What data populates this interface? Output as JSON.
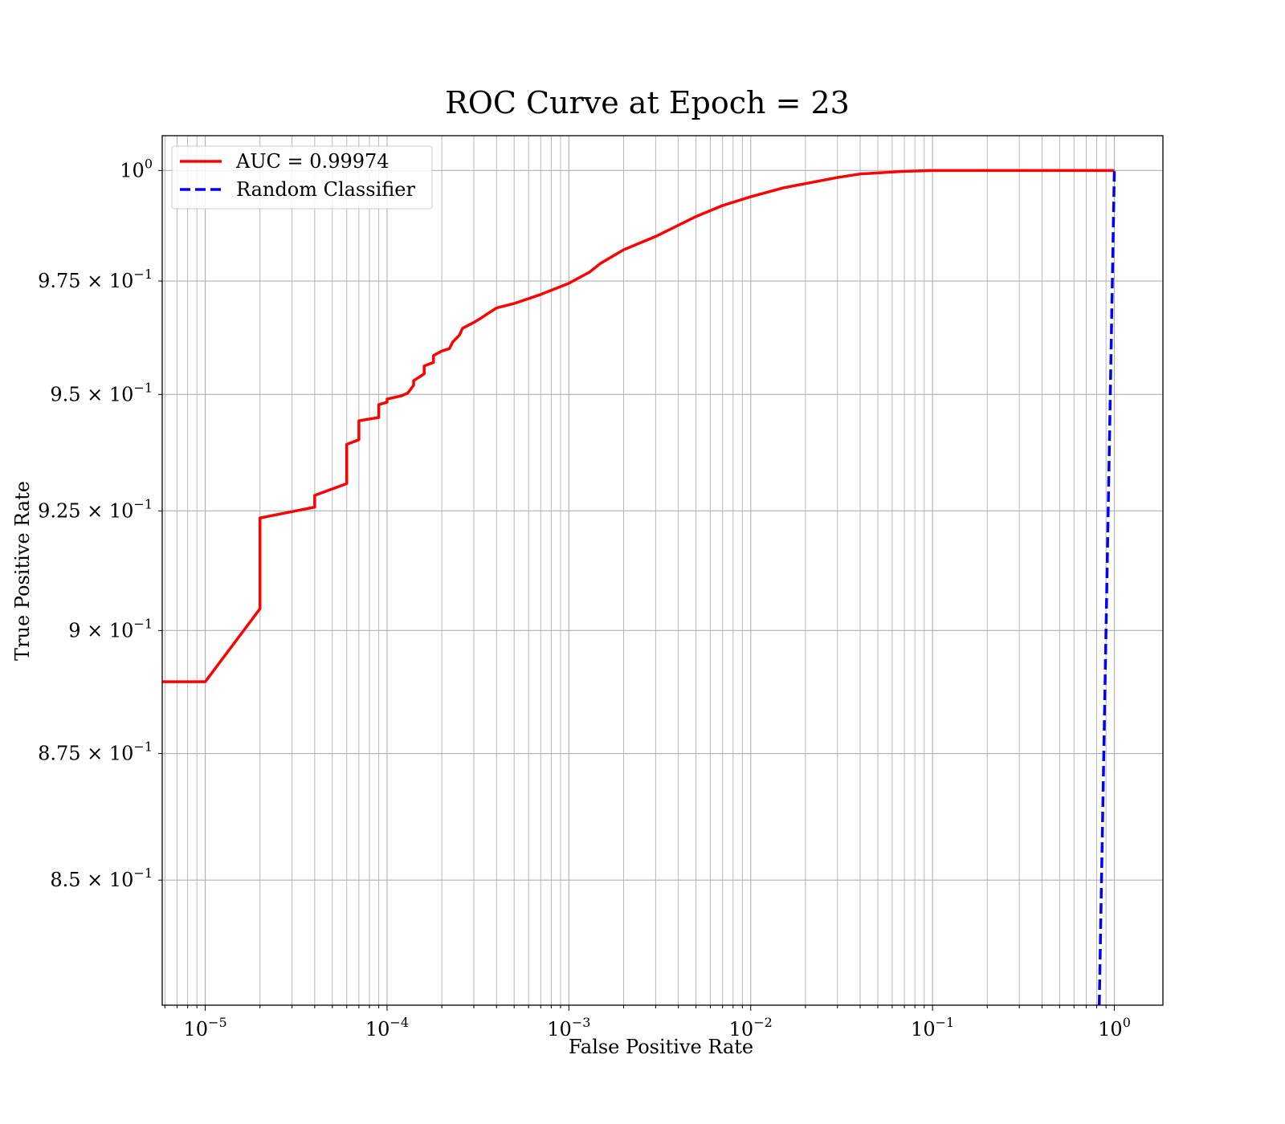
{
  "chart_data": {
    "type": "line",
    "title": "ROC Curve at Epoch = 23",
    "xlabel": "False Positive Rate",
    "ylabel": "True Positive Rate",
    "xscale": "log",
    "yscale": "log",
    "xlim": [
      5.8e-06,
      1.85
    ],
    "ylim": [
      0.826,
      1.008
    ],
    "grid": "both, major and minor",
    "legend_position": "top-left",
    "x_ticks": [
      {
        "mantissa": "",
        "base": "10",
        "exp": "−5"
      },
      {
        "mantissa": "",
        "base": "10",
        "exp": "−4"
      },
      {
        "mantissa": "",
        "base": "10",
        "exp": "−3"
      },
      {
        "mantissa": "",
        "base": "10",
        "exp": "−2"
      },
      {
        "mantissa": "",
        "base": "10",
        "exp": "−1"
      },
      {
        "mantissa": "",
        "base": "10",
        "exp": "0"
      }
    ],
    "x_tick_values": [
      1e-05,
      0.0001,
      0.001,
      0.01,
      0.1,
      1
    ],
    "y_ticks": [
      {
        "mantissa": "8.5 × ",
        "base": "10",
        "exp": "−1"
      },
      {
        "mantissa": "8.75 × ",
        "base": "10",
        "exp": "−1"
      },
      {
        "mantissa": "9 × ",
        "base": "10",
        "exp": "−1"
      },
      {
        "mantissa": "9.25 × ",
        "base": "10",
        "exp": "−1"
      },
      {
        "mantissa": "9.5 × ",
        "base": "10",
        "exp": "−1"
      },
      {
        "mantissa": "9.75 × ",
        "base": "10",
        "exp": "−1"
      },
      {
        "mantissa": "",
        "base": "10",
        "exp": "0"
      }
    ],
    "y_tick_values": [
      0.85,
      0.875,
      0.9,
      0.925,
      0.95,
      0.975,
      1.0
    ],
    "series": [
      {
        "name": "AUC = 0.99974",
        "color": "#ff0000",
        "style": "solid",
        "x": [
          5.8e-06,
          1e-05,
          2e-05,
          2e-05,
          4e-05,
          4e-05,
          6e-05,
          6e-05,
          7e-05,
          7e-05,
          9e-05,
          9e-05,
          0.0001,
          0.0001,
          0.00012,
          0.00013,
          0.00014,
          0.00014,
          0.00016,
          0.00016,
          0.00018,
          0.00018,
          0.0002,
          0.00022,
          0.00023,
          0.00025,
          0.00026,
          0.0003,
          0.00033,
          0.00035,
          0.0004,
          0.0005,
          0.0007,
          0.001,
          0.0013,
          0.0015,
          0.002,
          0.003,
          0.005,
          0.007,
          0.01,
          0.015,
          0.02,
          0.03,
          0.04,
          0.07,
          0.1,
          0.2,
          0.5,
          1.0
        ],
        "y": [
          0.8895,
          0.8895,
          0.9045,
          0.9235,
          0.9258,
          0.9283,
          0.9308,
          0.9392,
          0.9402,
          0.9443,
          0.945,
          0.9478,
          0.9483,
          0.949,
          0.9497,
          0.9503,
          0.952,
          0.953,
          0.9545,
          0.9562,
          0.957,
          0.9585,
          0.9595,
          0.96,
          0.9615,
          0.963,
          0.9645,
          0.9658,
          0.9668,
          0.9675,
          0.969,
          0.97,
          0.972,
          0.9745,
          0.977,
          0.979,
          0.982,
          0.985,
          0.9895,
          0.992,
          0.994,
          0.996,
          0.997,
          0.9984,
          0.9992,
          0.9998,
          1.0,
          1.0,
          1.0,
          1.0
        ]
      },
      {
        "name": "Random Classifier",
        "color": "#0000ff",
        "style": "dashed",
        "x": [
          0.826,
          1.0
        ],
        "y": [
          0.826,
          1.0
        ]
      }
    ]
  }
}
